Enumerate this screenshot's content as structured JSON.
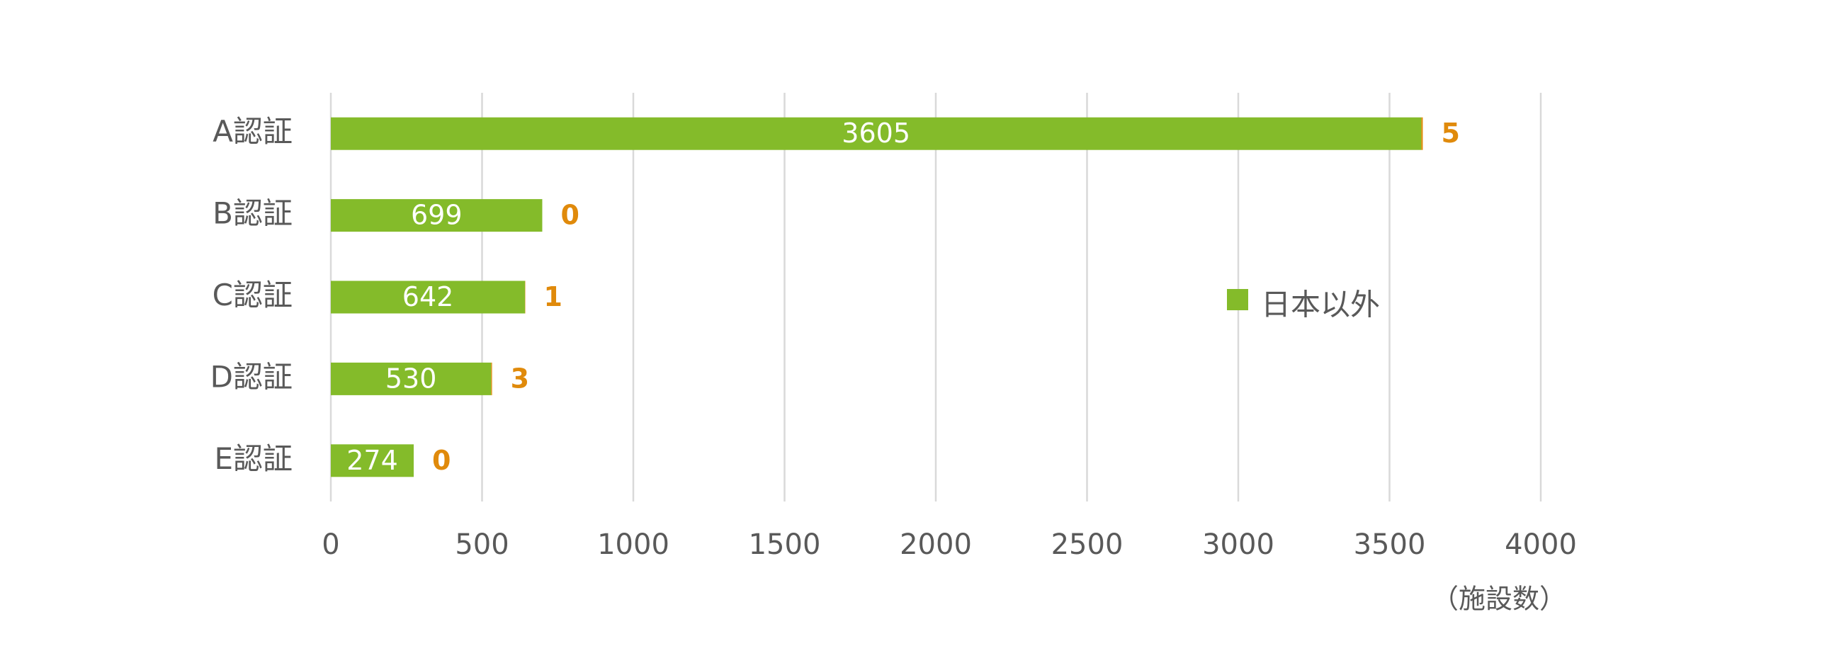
{
  "chart_data": {
    "type": "stacked-barh",
    "categories": [
      "A認証",
      "B認証",
      "C認証",
      "D認証",
      "E認証"
    ],
    "series": [
      {
        "name": "日本以外",
        "color": "#84bb2a",
        "values": [
          3605,
          699,
          642,
          530,
          274
        ]
      },
      {
        "color": "#e08a0b",
        "values": [
          5,
          0,
          1,
          3,
          0
        ]
      }
    ],
    "xlim": [
      0,
      4000
    ],
    "xticks": [
      0,
      500,
      1000,
      1500,
      2000,
      2500,
      3000,
      3500,
      4000
    ],
    "x_axis_label": "（施設数）",
    "grid": true,
    "legend": "right"
  }
}
